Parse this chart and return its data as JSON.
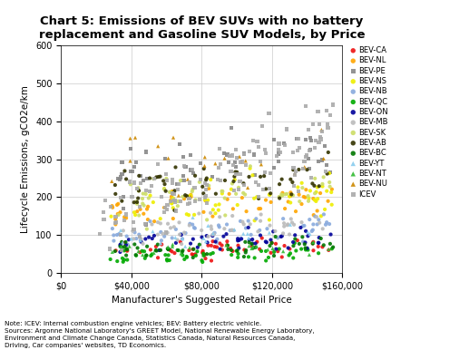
{
  "title": "Chart 5: Emissions of BEV SUVs with no battery\nreplacement and Gasoline SUV Models, by Price",
  "xlabel": "Manufacturer's Suggested Retail Price",
  "ylabel": "Lifecycle Emissions, gCO2e/km",
  "xlim": [
    0,
    160000
  ],
  "ylim": [
    0,
    600
  ],
  "xticks": [
    0,
    40000,
    80000,
    120000,
    160000
  ],
  "yticks": [
    0,
    100,
    200,
    300,
    400,
    500,
    600
  ],
  "note": "Note: ICEV: Internal combustion engine vehicles; BEV: Battery electric vehicle.\nSources: Argonne National Laboratory's GREET Model, National Renewable Energy Laboratory,\nEnvironment and Climate Change Canada, Statistics Canada, Natural Resources Canada,\nDriving, Car companies' websites, TD Economics.",
  "series": [
    {
      "label": "BEV-CA",
      "color": "#EE1111",
      "marker": "o",
      "size": 9
    },
    {
      "label": "BEV-NL",
      "color": "#FFA500",
      "marker": "o",
      "size": 9
    },
    {
      "label": "BEV-PE",
      "color": "#888888",
      "marker": "s",
      "size": 9
    },
    {
      "label": "BEV-NS",
      "color": "#EEEE00",
      "marker": "o",
      "size": 9
    },
    {
      "label": "BEV-NB",
      "color": "#88AADD",
      "marker": "o",
      "size": 9
    },
    {
      "label": "BEV-QC",
      "color": "#00AA00",
      "marker": "o",
      "size": 9
    },
    {
      "label": "BEV-ON",
      "color": "#000099",
      "marker": "o",
      "size": 9
    },
    {
      "label": "BEV-MB",
      "color": "#BBBBBB",
      "marker": "o",
      "size": 9
    },
    {
      "label": "BEV-SK",
      "color": "#CCDD66",
      "marker": "o",
      "size": 9
    },
    {
      "label": "BEV-AB",
      "color": "#333300",
      "marker": "o",
      "size": 9
    },
    {
      "label": "BEV-BC",
      "color": "#007700",
      "marker": "o",
      "size": 9
    },
    {
      "label": "BEV-YT",
      "color": "#88CCEE",
      "marker": "^",
      "size": 9
    },
    {
      "label": "BEV-NT",
      "color": "#33BB33",
      "marker": "^",
      "size": 9
    },
    {
      "label": "BEV-NU",
      "color": "#CC8800",
      "marker": "^",
      "size": 9
    },
    {
      "label": "ICEV",
      "color": "#AAAAAA",
      "marker": "s",
      "size": 9
    }
  ]
}
